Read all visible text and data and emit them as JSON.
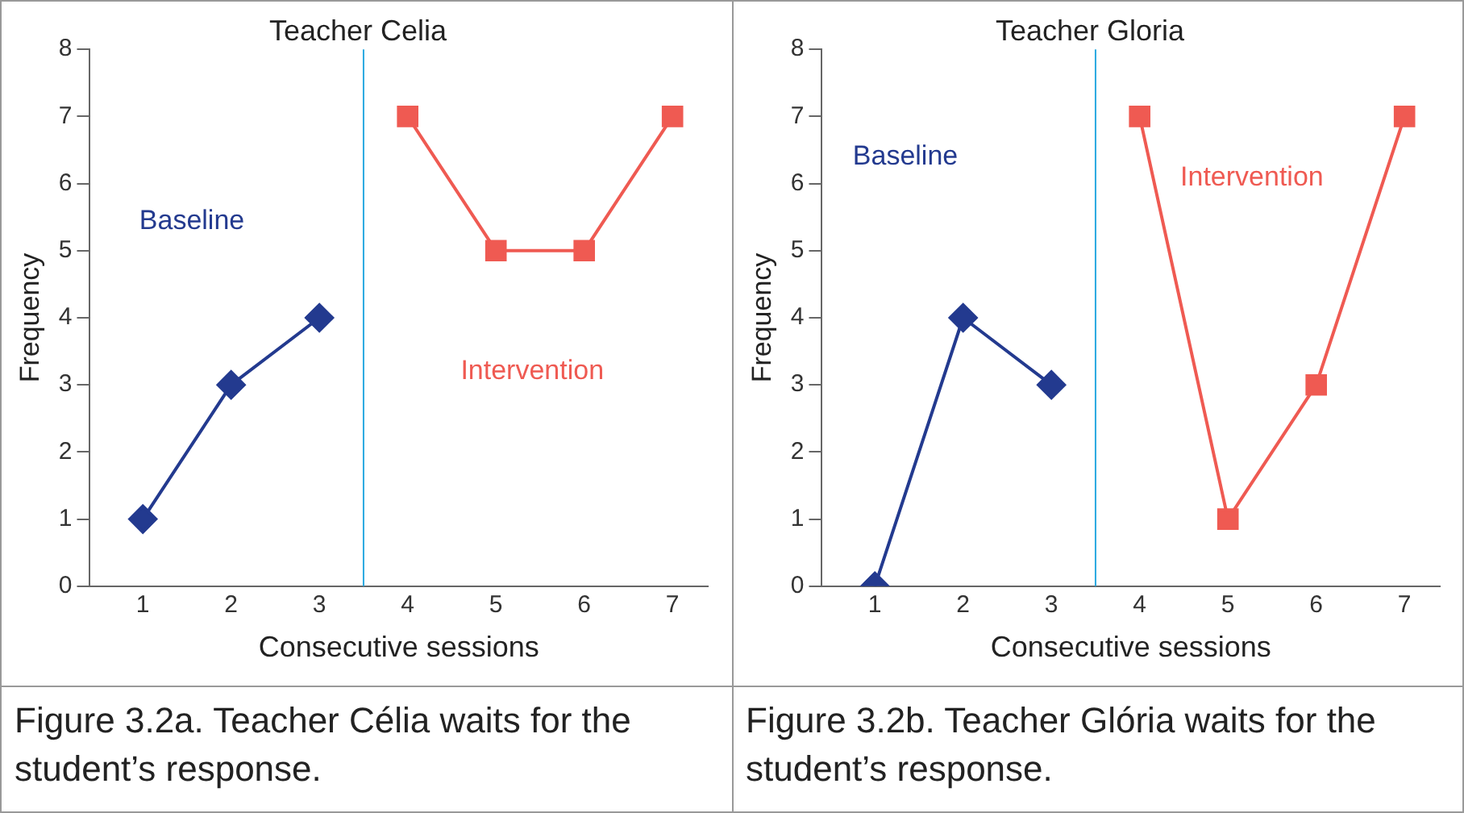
{
  "chart_data": [
    {
      "type": "line",
      "title": "Teacher Celia",
      "xlabel": "Consecutive sessions",
      "ylabel": "Frequency",
      "xlim": [
        0.4,
        7.4
      ],
      "ylim": [
        0,
        8
      ],
      "xticks": [
        1,
        2,
        3,
        4,
        5,
        6,
        7
      ],
      "yticks": [
        0,
        1,
        2,
        3,
        4,
        5,
        6,
        7,
        8
      ],
      "grid": false,
      "legend": false,
      "series": [
        {
          "name": "Baseline",
          "color": "#233a8f",
          "marker": "diamond",
          "x": [
            1,
            2,
            3
          ],
          "values": [
            1,
            3,
            4
          ]
        },
        {
          "name": "Intervention",
          "color": "#ef5a52",
          "marker": "square",
          "x": [
            4,
            5,
            6,
            7
          ],
          "values": [
            7,
            5,
            5,
            7
          ]
        }
      ],
      "ref_lines": [
        {
          "axis": "x",
          "value": 3.5,
          "color": "#29a8e0"
        }
      ],
      "annotations": [
        "Figure 3.2a. Teacher Célia waits for the student’s response."
      ]
    },
    {
      "type": "line",
      "title": "Teacher Gloria",
      "xlabel": "Consecutive sessions",
      "ylabel": "Frequency",
      "xlim": [
        0.4,
        7.4
      ],
      "ylim": [
        0,
        8
      ],
      "xticks": [
        1,
        2,
        3,
        4,
        5,
        6,
        7
      ],
      "yticks": [
        0,
        1,
        2,
        3,
        4,
        5,
        6,
        7,
        8
      ],
      "grid": false,
      "legend": false,
      "series": [
        {
          "name": "Baseline",
          "color": "#233a8f",
          "marker": "diamond",
          "x": [
            1,
            2,
            3
          ],
          "values": [
            0,
            4,
            3
          ]
        },
        {
          "name": "Intervention",
          "color": "#ef5a52",
          "marker": "square",
          "x": [
            4,
            5,
            6,
            7
          ],
          "values": [
            7,
            1,
            3,
            7
          ]
        }
      ],
      "ref_lines": [
        {
          "axis": "x",
          "value": 3.5,
          "color": "#29a8e0"
        }
      ],
      "annotations": [
        "Figure 3.2b. Teacher Glória waits for the student’s response."
      ]
    }
  ]
}
